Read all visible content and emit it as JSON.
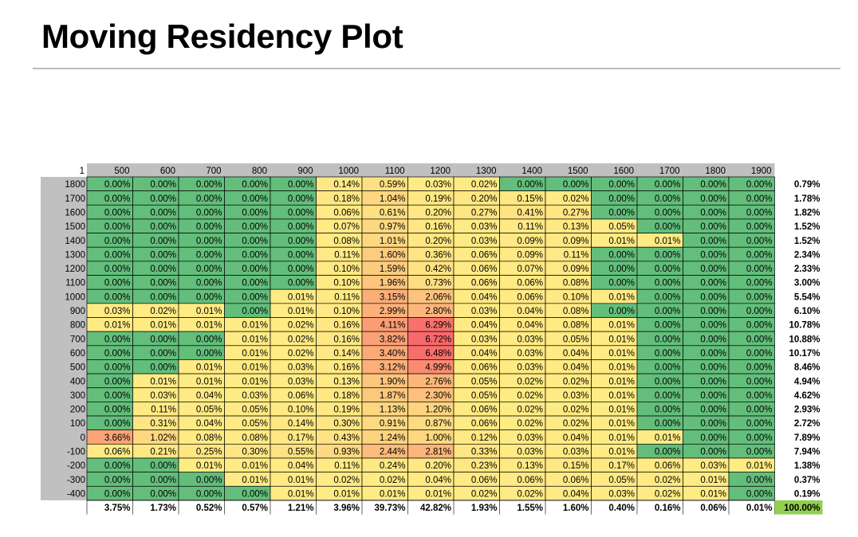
{
  "page": {
    "title": "Moving Residency Plot"
  },
  "chart_data": {
    "type": "heatmap",
    "title": "Moving Residency Plot",
    "corner_label": "1",
    "x": [
      "500",
      "600",
      "700",
      "800",
      "900",
      "1000",
      "1100",
      "1200",
      "1300",
      "1400",
      "1500",
      "1600",
      "1700",
      "1800",
      "1900"
    ],
    "y": [
      "1800",
      "1700",
      "1600",
      "1500",
      "1400",
      "1300",
      "1200",
      "1100",
      "1000",
      "900",
      "800",
      "700",
      "600",
      "500",
      "400",
      "300",
      "200",
      "100",
      "0",
      "-100",
      "-200",
      "-300",
      "-400"
    ],
    "values": [
      [
        "0.00%",
        "0.00%",
        "0.00%",
        "0.00%",
        "0.00%",
        "0.14%",
        "0.59%",
        "0.03%",
        "0.02%",
        "0.00%",
        "0.00%",
        "0.00%",
        "0.00%",
        "0.00%",
        "0.00%"
      ],
      [
        "0.00%",
        "0.00%",
        "0.00%",
        "0.00%",
        "0.00%",
        "0.18%",
        "1.04%",
        "0.19%",
        "0.20%",
        "0.15%",
        "0.02%",
        "0.00%",
        "0.00%",
        "0.00%",
        "0.00%"
      ],
      [
        "0.00%",
        "0.00%",
        "0.00%",
        "0.00%",
        "0.00%",
        "0.06%",
        "0.61%",
        "0.20%",
        "0.27%",
        "0.41%",
        "0.27%",
        "0.00%",
        "0.00%",
        "0.00%",
        "0.00%"
      ],
      [
        "0.00%",
        "0.00%",
        "0.00%",
        "0.00%",
        "0.00%",
        "0.07%",
        "0.97%",
        "0.16%",
        "0.03%",
        "0.11%",
        "0.13%",
        "0.05%",
        "0.00%",
        "0.00%",
        "0.00%"
      ],
      [
        "0.00%",
        "0.00%",
        "0.00%",
        "0.00%",
        "0.00%",
        "0.08%",
        "1.01%",
        "0.20%",
        "0.03%",
        "0.09%",
        "0.09%",
        "0.01%",
        "0.01%",
        "0.00%",
        "0.00%"
      ],
      [
        "0.00%",
        "0.00%",
        "0.00%",
        "0.00%",
        "0.00%",
        "0.11%",
        "1.60%",
        "0.36%",
        "0.06%",
        "0.09%",
        "0.11%",
        "0.00%",
        "0.00%",
        "0.00%",
        "0.00%"
      ],
      [
        "0.00%",
        "0.00%",
        "0.00%",
        "0.00%",
        "0.00%",
        "0.10%",
        "1.59%",
        "0.42%",
        "0.06%",
        "0.07%",
        "0.09%",
        "0.00%",
        "0.00%",
        "0.00%",
        "0.00%"
      ],
      [
        "0.00%",
        "0.00%",
        "0.00%",
        "0.00%",
        "0.00%",
        "0.10%",
        "1.96%",
        "0.73%",
        "0.06%",
        "0.06%",
        "0.08%",
        "0.00%",
        "0.00%",
        "0.00%",
        "0.00%"
      ],
      [
        "0.00%",
        "0.00%",
        "0.00%",
        "0.00%",
        "0.01%",
        "0.11%",
        "3.15%",
        "2.06%",
        "0.04%",
        "0.06%",
        "0.10%",
        "0.01%",
        "0.00%",
        "0.00%",
        "0.00%"
      ],
      [
        "0.03%",
        "0.02%",
        "0.01%",
        "0.00%",
        "0.01%",
        "0.10%",
        "2.99%",
        "2.80%",
        "0.03%",
        "0.04%",
        "0.08%",
        "0.00%",
        "0.00%",
        "0.00%",
        "0.00%"
      ],
      [
        "0.01%",
        "0.01%",
        "0.01%",
        "0.01%",
        "0.02%",
        "0.16%",
        "4.11%",
        "6.29%",
        "0.04%",
        "0.04%",
        "0.08%",
        "0.01%",
        "0.00%",
        "0.00%",
        "0.00%"
      ],
      [
        "0.00%",
        "0.00%",
        "0.00%",
        "0.01%",
        "0.02%",
        "0.16%",
        "3.82%",
        "6.72%",
        "0.03%",
        "0.03%",
        "0.05%",
        "0.01%",
        "0.00%",
        "0.00%",
        "0.00%"
      ],
      [
        "0.00%",
        "0.00%",
        "0.00%",
        "0.01%",
        "0.02%",
        "0.14%",
        "3.40%",
        "6.48%",
        "0.04%",
        "0.03%",
        "0.04%",
        "0.01%",
        "0.00%",
        "0.00%",
        "0.00%"
      ],
      [
        "0.00%",
        "0.00%",
        "0.01%",
        "0.01%",
        "0.03%",
        "0.16%",
        "3.12%",
        "4.99%",
        "0.06%",
        "0.03%",
        "0.04%",
        "0.01%",
        "0.00%",
        "0.00%",
        "0.00%"
      ],
      [
        "0.00%",
        "0.01%",
        "0.01%",
        "0.01%",
        "0.03%",
        "0.13%",
        "1.90%",
        "2.76%",
        "0.05%",
        "0.02%",
        "0.02%",
        "0.01%",
        "0.00%",
        "0.00%",
        "0.00%"
      ],
      [
        "0.00%",
        "0.03%",
        "0.04%",
        "0.03%",
        "0.06%",
        "0.18%",
        "1.87%",
        "2.30%",
        "0.05%",
        "0.02%",
        "0.03%",
        "0.01%",
        "0.00%",
        "0.00%",
        "0.00%"
      ],
      [
        "0.00%",
        "0.11%",
        "0.05%",
        "0.05%",
        "0.10%",
        "0.19%",
        "1.13%",
        "1.20%",
        "0.06%",
        "0.02%",
        "0.02%",
        "0.01%",
        "0.00%",
        "0.00%",
        "0.00%"
      ],
      [
        "0.00%",
        "0.31%",
        "0.04%",
        "0.05%",
        "0.14%",
        "0.30%",
        "0.91%",
        "0.87%",
        "0.06%",
        "0.02%",
        "0.02%",
        "0.01%",
        "0.00%",
        "0.00%",
        "0.00%"
      ],
      [
        "3.66%",
        "1.02%",
        "0.08%",
        "0.08%",
        "0.17%",
        "0.43%",
        "1.24%",
        "1.00%",
        "0.12%",
        "0.03%",
        "0.04%",
        "0.01%",
        "0.01%",
        "0.00%",
        "0.00%"
      ],
      [
        "0.06%",
        "0.21%",
        "0.25%",
        "0.30%",
        "0.55%",
        "0.93%",
        "2.44%",
        "2.81%",
        "0.33%",
        "0.03%",
        "0.03%",
        "0.01%",
        "0.00%",
        "0.00%",
        "0.00%"
      ],
      [
        "0.00%",
        "0.00%",
        "0.01%",
        "0.01%",
        "0.04%",
        "0.11%",
        "0.24%",
        "0.20%",
        "0.23%",
        "0.13%",
        "0.15%",
        "0.17%",
        "0.06%",
        "0.03%",
        "0.01%"
      ],
      [
        "0.00%",
        "0.00%",
        "0.00%",
        "0.01%",
        "0.01%",
        "0.02%",
        "0.02%",
        "0.04%",
        "0.06%",
        "0.06%",
        "0.06%",
        "0.05%",
        "0.02%",
        "0.01%",
        "0.00%"
      ],
      [
        "0.00%",
        "0.00%",
        "0.00%",
        "0.00%",
        "0.01%",
        "0.01%",
        "0.01%",
        "0.01%",
        "0.02%",
        "0.02%",
        "0.04%",
        "0.03%",
        "0.02%",
        "0.01%",
        "0.00%"
      ]
    ],
    "row_totals": [
      "0.79%",
      "1.78%",
      "1.82%",
      "1.52%",
      "1.52%",
      "2.34%",
      "2.33%",
      "3.00%",
      "5.54%",
      "6.10%",
      "10.78%",
      "10.88%",
      "10.17%",
      "8.46%",
      "4.94%",
      "4.62%",
      "2.93%",
      "2.72%",
      "7.89%",
      "7.94%",
      "1.38%",
      "0.37%",
      "0.19%"
    ],
    "col_totals": [
      "3.75%",
      "1.73%",
      "0.52%",
      "0.57%",
      "1.21%",
      "3.96%",
      "39.73%",
      "42.82%",
      "1.93%",
      "1.55%",
      "1.60%",
      "0.40%",
      "0.16%",
      "0.06%",
      "0.01%"
    ],
    "grand_total": "100.00%",
    "color_scale": {
      "low": "#63be7b",
      "mid": "#ffeb84",
      "high": "#f8696b"
    },
    "header_bg": "#c0c0c0",
    "grand_total_bg": "#92d050"
  }
}
